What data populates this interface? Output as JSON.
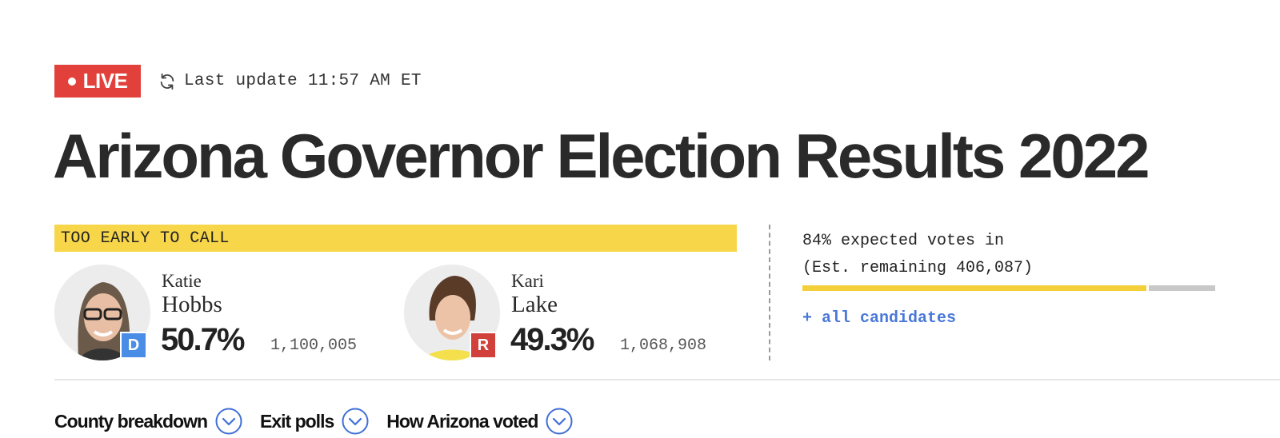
{
  "header": {
    "live_label": "LIVE",
    "last_update": "Last update 11:57 AM ET",
    "live_color": "#e2413b"
  },
  "title": "Arizona Governor Election Results 2022",
  "race": {
    "status": "TOO EARLY TO CALL",
    "status_color": "#f7d64a",
    "candidates": [
      {
        "first": "Katie",
        "last": "Hobbs",
        "party": "D",
        "party_color": "#4a8de6",
        "pct": "50.7%",
        "votes": "1,100,005",
        "photo": "candidate-photo"
      },
      {
        "first": "Kari",
        "last": "Lake",
        "party": "R",
        "party_color": "#d1403a",
        "pct": "49.3%",
        "votes": "1,068,908",
        "photo": "candidate-photo"
      }
    ]
  },
  "reporting": {
    "line1": "84% expected votes in",
    "line2": "(Est. remaining 406,087)",
    "progress": 0.84,
    "all_candidates_link": "+ all candidates"
  },
  "tabs": [
    {
      "label": "County breakdown",
      "icon": "chevron-down-circle-icon"
    },
    {
      "label": "Exit polls",
      "icon": "chevron-down-circle-icon"
    },
    {
      "label": "How Arizona voted",
      "icon": "chevron-down-circle-icon"
    }
  ]
}
